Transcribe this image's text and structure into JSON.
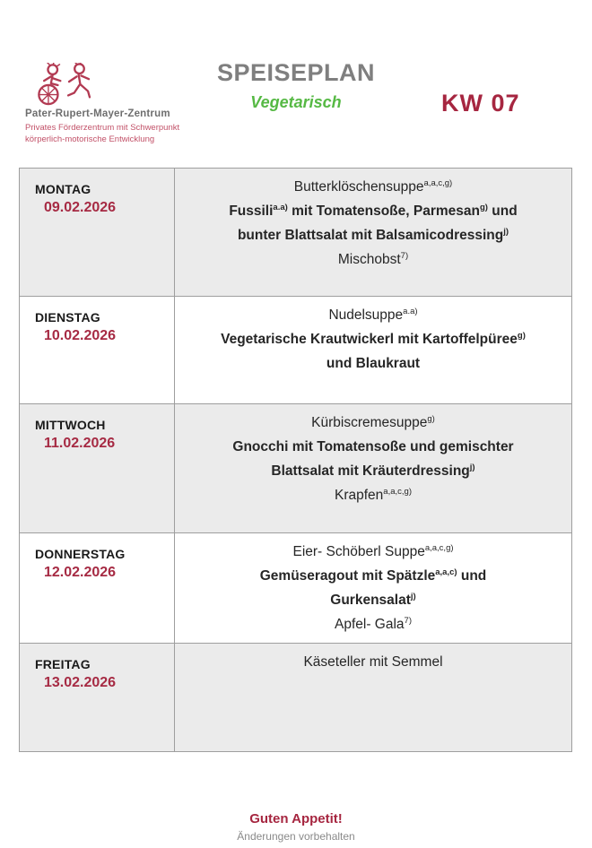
{
  "header": {
    "title": "SPEISEPLAN",
    "subtitle": "Vegetarisch",
    "week": "KW 07",
    "org_name": "Pater-Rupert-Mayer-Zentrum",
    "org_tagline_line1": "Privates Förderzentrum mit Schwerpunkt",
    "org_tagline_line2": "körperlich-motorische Entwicklung",
    "logo_icon": "children-logo"
  },
  "colors": {
    "accent_crimson": "#A62640",
    "tagline_red": "#C25168",
    "title_gray": "#7F7F7F",
    "vegetarian_green": "#56B944",
    "row_gray": "#EBEBEB",
    "border_gray": "#9E9E9E"
  },
  "menu": {
    "rows": [
      {
        "day": "MONTAG",
        "date": "09.02.2026",
        "lines": [
          {
            "bold": false,
            "segments": [
              {
                "text": "Butterklöschensuppe"
              },
              {
                "sup": "a,a,c,g)"
              }
            ]
          },
          {
            "bold": true,
            "segments": [
              {
                "text": "Fussili"
              },
              {
                "sup": "a.a)"
              },
              {
                "text": " mit Tomatensoße, Parmesan"
              },
              {
                "sup": "g)"
              },
              {
                "text": " und"
              }
            ]
          },
          {
            "bold": true,
            "segments": [
              {
                "text": "bunter Blattsalat mit Balsamicodressing"
              },
              {
                "sup": "j)"
              }
            ]
          },
          {
            "bold": false,
            "segments": [
              {
                "text": "Mischobst"
              },
              {
                "sup": "7)"
              }
            ]
          }
        ]
      },
      {
        "day": "DIENSTAG",
        "date": "10.02.2026",
        "lines": [
          {
            "bold": false,
            "segments": [
              {
                "text": "Nudelsuppe"
              },
              {
                "sup": "a.a)"
              }
            ]
          },
          {
            "bold": true,
            "segments": [
              {
                "text": "Vegetarische Krautwickerl mit Kartoffelpüree"
              },
              {
                "sup": "g)"
              }
            ]
          },
          {
            "bold": true,
            "segments": [
              {
                "text": "und Blaukraut"
              }
            ]
          }
        ]
      },
      {
        "day": "MITTWOCH",
        "date": "11.02.2026",
        "lines": [
          {
            "bold": false,
            "segments": [
              {
                "text": "Kürbiscremesuppe"
              },
              {
                "sup": "g)"
              }
            ]
          },
          {
            "bold": true,
            "segments": [
              {
                "text": "Gnocchi mit Tomatensoße und gemischter"
              }
            ]
          },
          {
            "bold": true,
            "segments": [
              {
                "text": "Blattsalat mit Kräuterdressing"
              },
              {
                "sup": "j)"
              }
            ]
          },
          {
            "bold": false,
            "segments": [
              {
                "text": "Krapfen"
              },
              {
                "sup": "a,a,c,g)"
              }
            ]
          }
        ]
      },
      {
        "day": "DONNERSTAG",
        "date": "12.02.2026",
        "lines": [
          {
            "bold": false,
            "segments": [
              {
                "text": "Eier- Schöberl Suppe"
              },
              {
                "sup": "a,a,c,g)"
              }
            ]
          },
          {
            "bold": true,
            "segments": [
              {
                "text": "Gemüseragout mit Spätzle"
              },
              {
                "sup": "a,a,c)"
              },
              {
                "text": " und"
              }
            ]
          },
          {
            "bold": true,
            "segments": [
              {
                "text": "Gurkensalat"
              },
              {
                "sup": "j)"
              }
            ]
          },
          {
            "bold": false,
            "segments": [
              {
                "text": "Apfel- Gala"
              },
              {
                "sup": "7)"
              }
            ]
          }
        ]
      },
      {
        "day": "FREITAG",
        "date": "13.02.2026",
        "lines": [
          {
            "bold": false,
            "segments": [
              {
                "text": "Käseteller mit Semmel"
              }
            ]
          }
        ]
      }
    ]
  },
  "footer": {
    "message": "Guten Appetit!",
    "note": "Änderungen vorbehalten"
  }
}
